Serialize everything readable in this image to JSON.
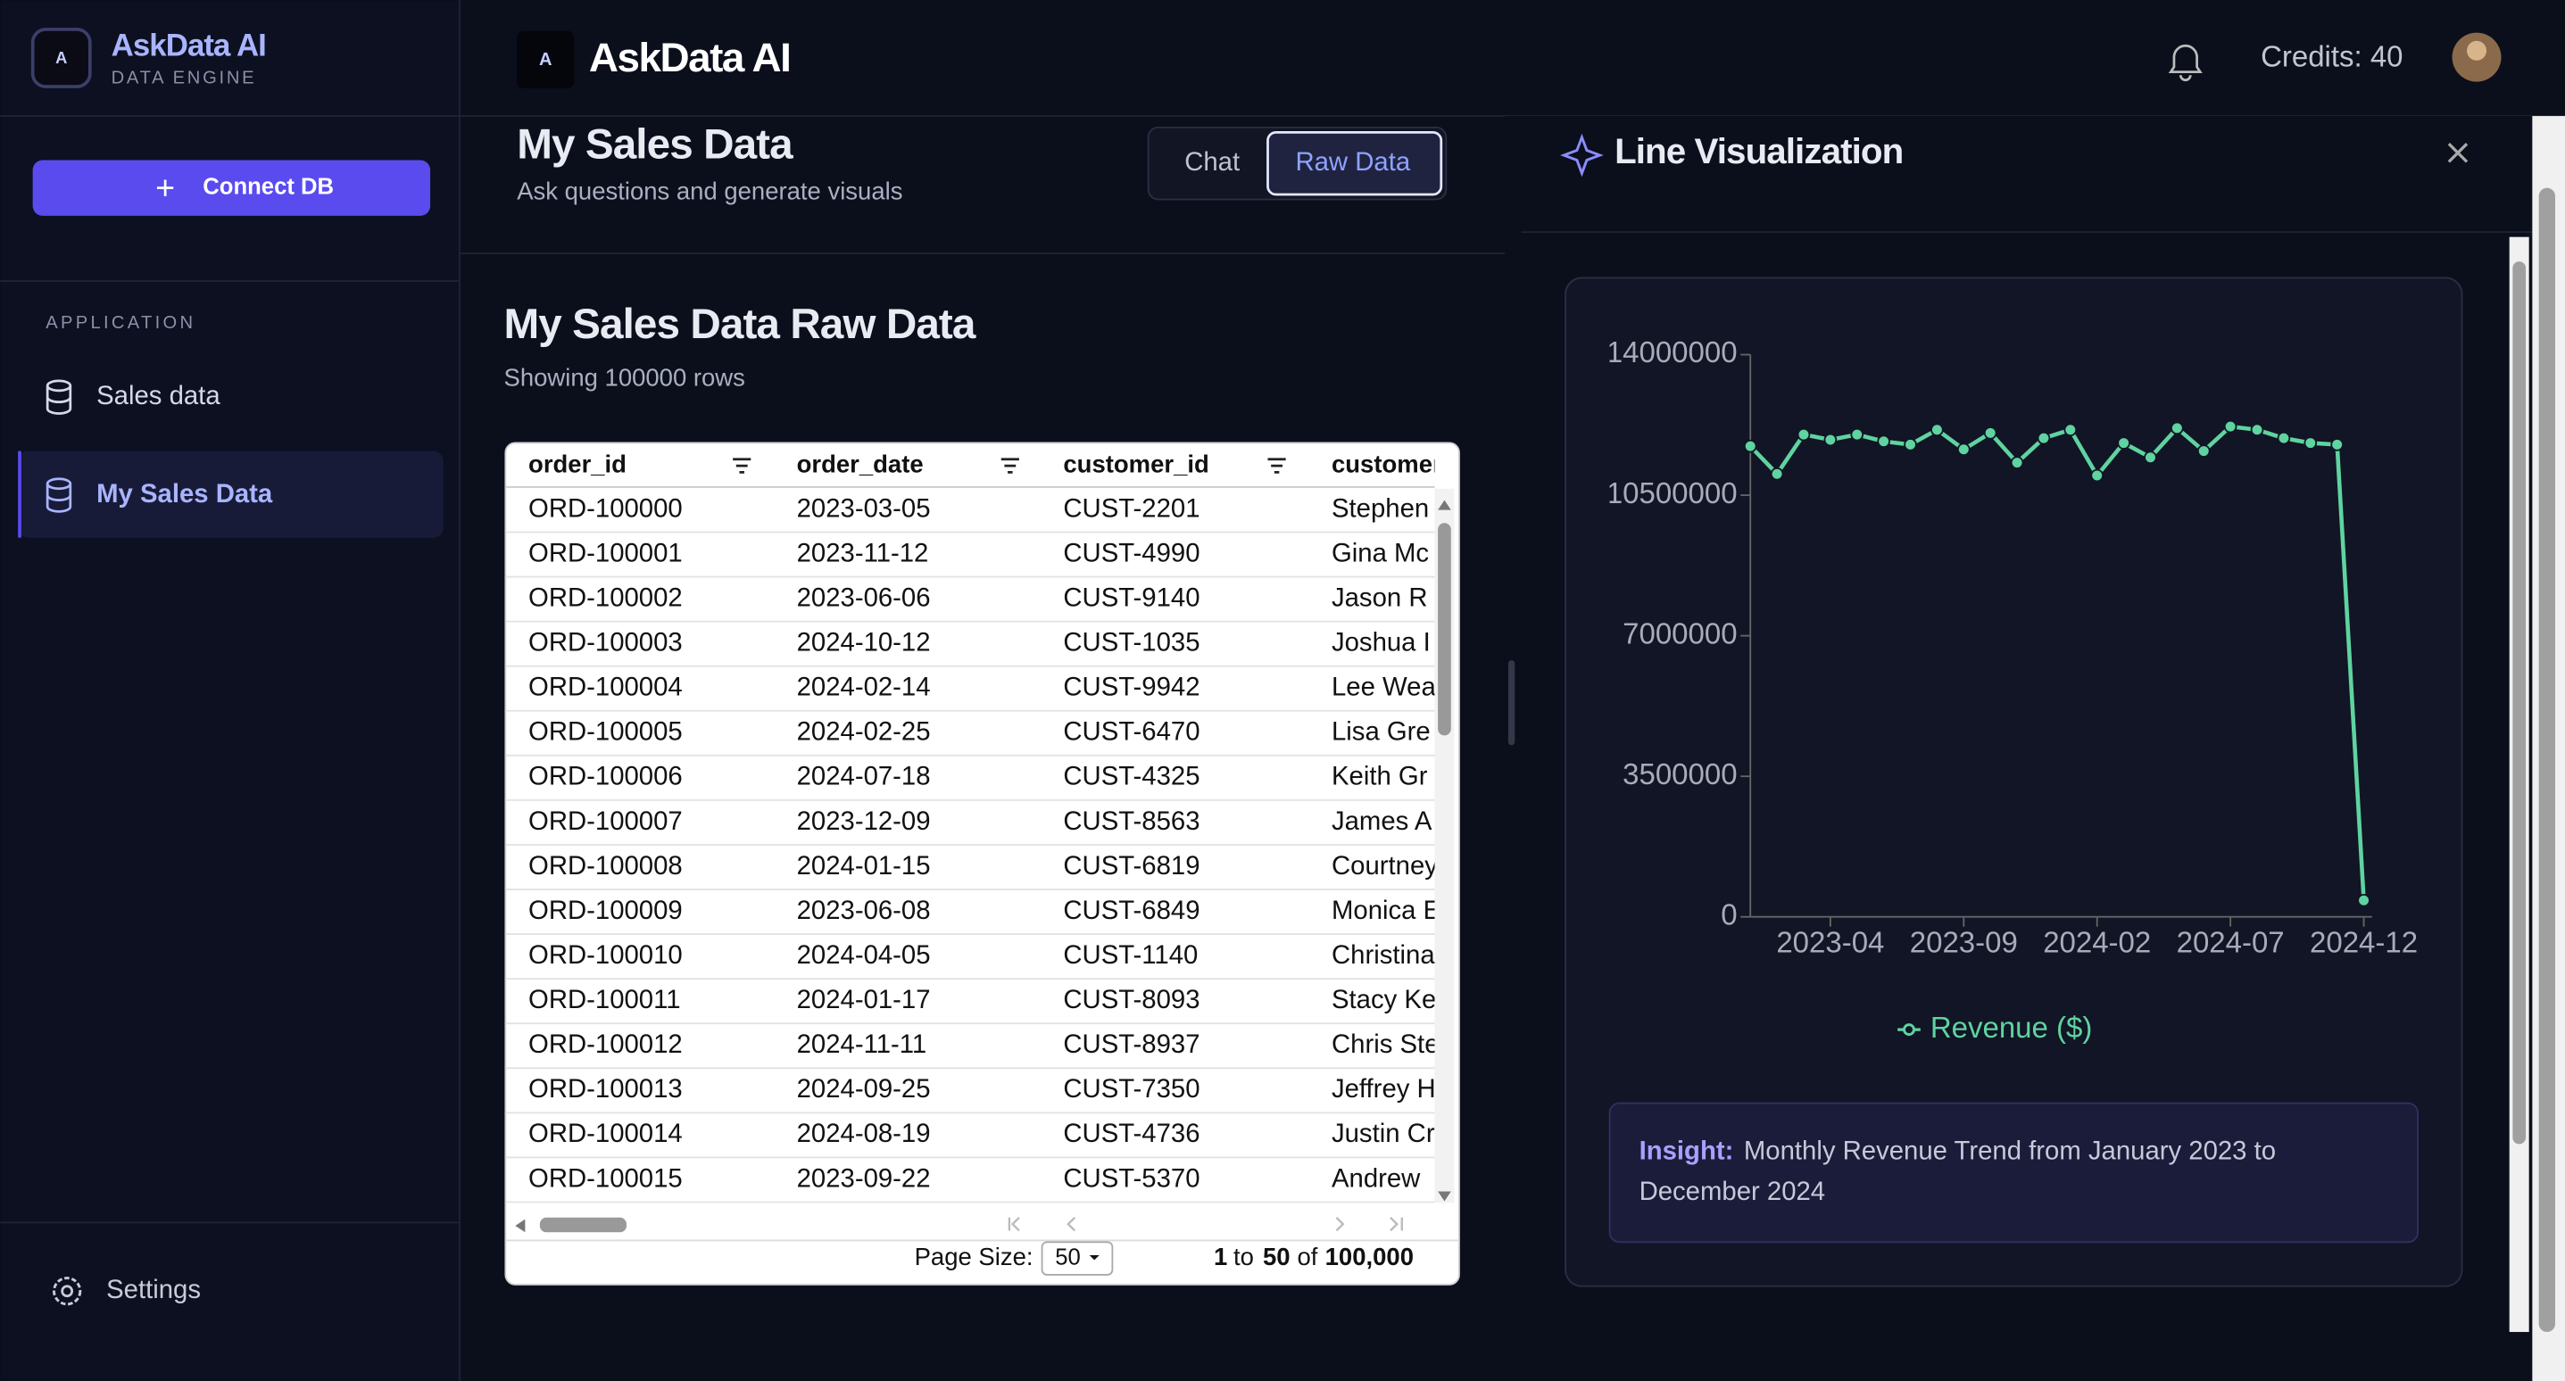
{
  "sidebar": {
    "brand": "AskData AI",
    "tagline": "DATA ENGINE",
    "button": "Connect DB",
    "section": "APPLICATION",
    "items": [
      "Sales data",
      "My Sales Data"
    ],
    "settings": "Settings"
  },
  "header": {
    "brand": "AskData AI",
    "credits": "Credits: 40"
  },
  "main": {
    "title": "My Sales Data",
    "subtitle": "Ask questions and generate visuals",
    "tabs": [
      "Chat",
      "Raw Data"
    ],
    "heading": "My Sales Data Raw Data",
    "row_count": "Showing 100000 rows"
  },
  "table": {
    "columns": [
      "order_id",
      "order_date",
      "customer_id",
      "customer_"
    ],
    "rows": [
      [
        "ORD-100000",
        "2023-03-05",
        "CUST-2201",
        "Stephen"
      ],
      [
        "ORD-100001",
        "2023-11-12",
        "CUST-4990",
        "Gina Mc"
      ],
      [
        "ORD-100002",
        "2023-06-06",
        "CUST-9140",
        "Jason R"
      ],
      [
        "ORD-100003",
        "2024-10-12",
        "CUST-1035",
        "Joshua I"
      ],
      [
        "ORD-100004",
        "2024-02-14",
        "CUST-9942",
        "Lee Wea"
      ],
      [
        "ORD-100005",
        "2024-02-25",
        "CUST-6470",
        "Lisa Gre"
      ],
      [
        "ORD-100006",
        "2024-07-18",
        "CUST-4325",
        "Keith Gr"
      ],
      [
        "ORD-100007",
        "2023-12-09",
        "CUST-8563",
        "James A"
      ],
      [
        "ORD-100008",
        "2024-01-15",
        "CUST-6819",
        "Courtney"
      ],
      [
        "ORD-100009",
        "2023-06-08",
        "CUST-6849",
        "Monica E"
      ],
      [
        "ORD-100010",
        "2024-04-05",
        "CUST-1140",
        "Christina"
      ],
      [
        "ORD-100011",
        "2024-01-17",
        "CUST-8093",
        "Stacy Ke"
      ],
      [
        "ORD-100012",
        "2024-11-11",
        "CUST-8937",
        "Chris Ste"
      ],
      [
        "ORD-100013",
        "2024-09-25",
        "CUST-7350",
        "Jeffrey H"
      ],
      [
        "ORD-100014",
        "2024-08-19",
        "CUST-4736",
        "Justin Cr"
      ],
      [
        "ORD-100015",
        "2023-09-22",
        "CUST-5370",
        "Andrew"
      ]
    ],
    "pager": {
      "size_label": "Page Size:",
      "size": "50",
      "from": "1",
      "to_word": "to",
      "to": "50",
      "of_word": "of",
      "total": "100,000"
    }
  },
  "panel": {
    "title": "Line Visualization",
    "insight_label": "Insight:",
    "insight_text": [
      "Monthly Revenue Trend from January 2023 to",
      "December 2024"
    ]
  },
  "chart_data": {
    "type": "line",
    "categories": [
      null,
      null,
      null,
      "2023-04",
      null,
      null,
      null,
      null,
      "2023-09",
      null,
      null,
      null,
      null,
      "2024-02",
      null,
      null,
      null,
      null,
      "2024-07",
      null,
      null,
      null,
      null,
      "2024-12"
    ],
    "series": [
      {
        "name": "Revenue ($)",
        "color": "#5fd3a0",
        "values": [
          11720000,
          11030000,
          12010000,
          11880000,
          12010000,
          11840000,
          11760000,
          12130000,
          11640000,
          12050000,
          11310000,
          11920000,
          12130000,
          10990000,
          11800000,
          11440000,
          12170000,
          11600000,
          12210000,
          12130000,
          11920000,
          11800000,
          11760000,
          410000
        ]
      }
    ],
    "ylim": [
      0,
      14000000
    ],
    "yticks": [
      0,
      3500000,
      7000000,
      10500000,
      14000000
    ],
    "grid": false
  }
}
